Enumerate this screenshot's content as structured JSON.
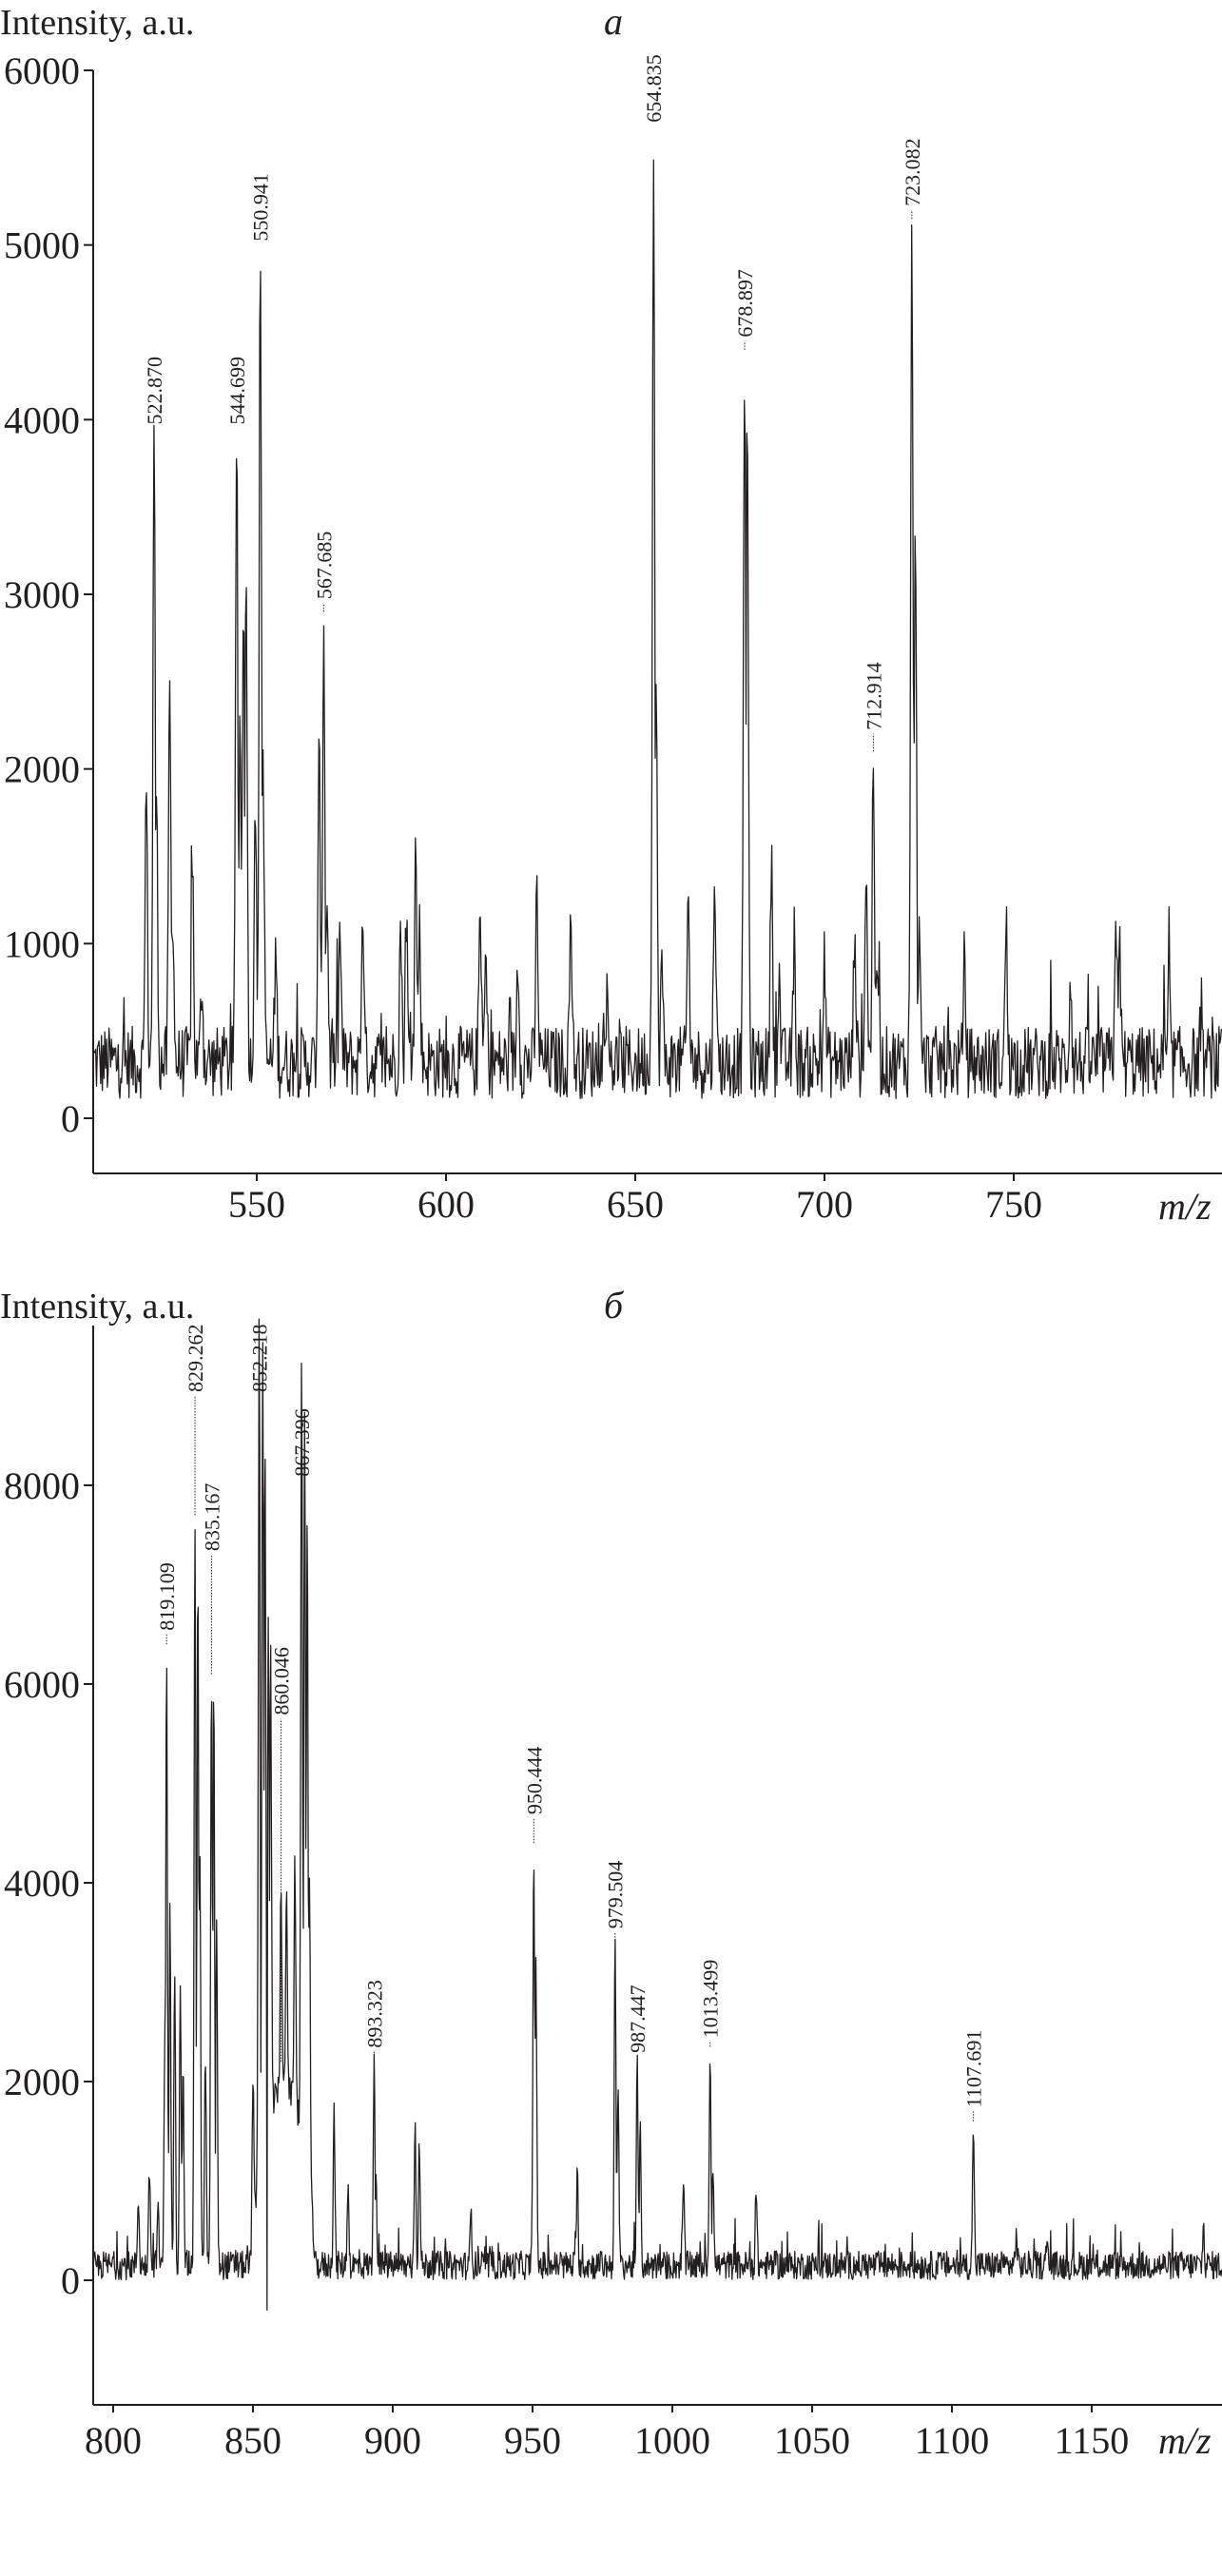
{
  "chart_data": [
    {
      "type": "line",
      "panel_label": "a",
      "ylabel": "Intensity, a.u.",
      "xlabel": "m/z",
      "xlim": [
        507,
        805
      ],
      "ylim": [
        -700,
        6000
      ],
      "xticks": [
        550,
        600,
        650,
        700,
        750
      ],
      "yticks": [
        0,
        1000,
        2000,
        3000,
        4000,
        5000,
        6000
      ],
      "baseline": 320,
      "noise": 260,
      "labeled_peaks": [
        {
          "label": "522.870",
          "x": 522.87,
          "y": 3900,
          "label_y": 3950
        },
        {
          "label": "544.699",
          "x": 544.699,
          "y": 3950,
          "label_y": 3950
        },
        {
          "label": "550.941",
          "x": 550.941,
          "y": 5000,
          "label_y": 5000
        },
        {
          "label": "567.685",
          "x": 567.685,
          "y": 2900,
          "label_y": 2950
        },
        {
          "label": "654.835",
          "x": 654.835,
          "y": 5680,
          "label_y": 5680
        },
        {
          "label": "678.897",
          "x": 678.897,
          "y": 4400,
          "label_y": 4450
        },
        {
          "label": "712.914",
          "x": 712.914,
          "y": 2100,
          "label_y": 2200
        },
        {
          "label": "723.082",
          "x": 723.082,
          "y": 5150,
          "label_y": 5200
        }
      ],
      "other_peaks": [
        [
          520.8,
          1900
        ],
        [
          523.5,
          1850
        ],
        [
          527,
          2500
        ],
        [
          527.8,
          1250
        ],
        [
          533,
          1480
        ],
        [
          535.5,
          800
        ],
        [
          545.6,
          2350
        ],
        [
          546.5,
          3100
        ],
        [
          547.2,
          3100
        ],
        [
          549.6,
          1900
        ],
        [
          551.6,
          2150
        ],
        [
          555,
          950
        ],
        [
          566.5,
          2100
        ],
        [
          568.6,
          1250
        ],
        [
          572,
          1100
        ],
        [
          578,
          1250
        ],
        [
          588,
          1100
        ],
        [
          589.5,
          1200
        ],
        [
          592,
          1550
        ],
        [
          593,
          1100
        ],
        [
          609,
          1200
        ],
        [
          610.5,
          900
        ],
        [
          619,
          950
        ],
        [
          624,
          1280
        ],
        [
          633,
          1200
        ],
        [
          642,
          650
        ],
        [
          655.5,
          2450
        ],
        [
          657,
          900
        ],
        [
          664,
          1280
        ],
        [
          671,
          1460
        ],
        [
          679.6,
          4000
        ],
        [
          686,
          1560
        ],
        [
          688,
          800
        ],
        [
          692,
          920
        ],
        [
          700,
          900
        ],
        [
          708,
          1150
        ],
        [
          711,
          1500
        ],
        [
          714,
          900
        ],
        [
          724,
          3550
        ],
        [
          725,
          1000
        ],
        [
          737,
          900
        ],
        [
          748,
          1100
        ],
        [
          765,
          850
        ],
        [
          777,
          1220
        ],
        [
          778,
          950
        ],
        [
          791,
          700
        ]
      ]
    },
    {
      "type": "line",
      "panel_label": "б",
      "ylabel": "Intensity, a.u.",
      "xlabel": "m/z",
      "xlim": [
        793,
        1197
      ],
      "ylim": [
        -2500,
        9600
      ],
      "xticks": [
        800,
        850,
        900,
        950,
        1000,
        1050,
        1100,
        1150
      ],
      "yticks": [
        0,
        2000,
        4000,
        6000,
        8000
      ],
      "baseline": 150,
      "noise": 180,
      "labeled_peaks": [
        {
          "label": "819.109",
          "x": 819.109,
          "y": 6400,
          "label_y": 6500
        },
        {
          "label": "829.262",
          "x": 829.262,
          "y": 7700,
          "label_y": 8900
        },
        {
          "label": "835.167",
          "x": 835.167,
          "y": 6100,
          "label_y": 7300
        },
        {
          "label": "852.218",
          "x": 852.218,
          "y": 8850,
          "label_y": 8900
        },
        {
          "label": "860.046",
          "x": 860.046,
          "y": 2200,
          "label_y": 5650
        },
        {
          "label": "867.396",
          "x": 867.396,
          "y": 8000,
          "label_y": 8050
        },
        {
          "label": "893.323",
          "x": 893.323,
          "y": 2200,
          "label_y": 2300
        },
        {
          "label": "950.444",
          "x": 950.444,
          "y": 4400,
          "label_y": 4650
        },
        {
          "label": "979.504",
          "x": 979.504,
          "y": 3450,
          "label_y": 3500
        },
        {
          "label": "987.447",
          "x": 987.447,
          "y": 2150,
          "label_y": 2250
        },
        {
          "label": "1013.499",
          "x": 1013.499,
          "y": 2350,
          "label_y": 2400
        },
        {
          "label": "1107.691",
          "x": 1107.691,
          "y": 1600,
          "label_y": 1700
        }
      ],
      "other_peaks": [
        [
          809,
          850
        ],
        [
          813,
          1100
        ],
        [
          816,
          750
        ],
        [
          818.5,
          2600
        ],
        [
          820.3,
          3750
        ],
        [
          822,
          3150
        ],
        [
          824,
          3100
        ],
        [
          825,
          2300
        ],
        [
          830.3,
          7200
        ],
        [
          831,
          4400
        ],
        [
          833,
          2300
        ],
        [
          836,
          6050
        ],
        [
          837,
          3600
        ],
        [
          850,
          2100
        ],
        [
          853.5,
          8400
        ],
        [
          854.3,
          7250
        ],
        [
          855.5,
          5150
        ],
        [
          856.3,
          4850
        ],
        [
          862,
          2200
        ],
        [
          865,
          2600
        ],
        [
          868.5,
          7500
        ],
        [
          869.4,
          6700
        ],
        [
          870.2,
          3300
        ],
        [
          879,
          1750
        ],
        [
          884,
          1000
        ],
        [
          894,
          1200
        ],
        [
          908,
          1650
        ],
        [
          909.5,
          1350
        ],
        [
          928,
          700
        ],
        [
          951.2,
          3150
        ],
        [
          966,
          1050
        ],
        [
          980.6,
          1950
        ],
        [
          988.5,
          1500
        ],
        [
          1004,
          1000
        ],
        [
          1014.5,
          1200
        ],
        [
          1030,
          850
        ],
        [
          1123,
          480
        ],
        [
          1134,
          400
        ],
        [
          1190,
          500
        ]
      ],
      "hump": {
        "from": 850,
        "to": 872,
        "level": 1800
      },
      "dip": {
        "x": 855,
        "y": -300
      }
    }
  ]
}
